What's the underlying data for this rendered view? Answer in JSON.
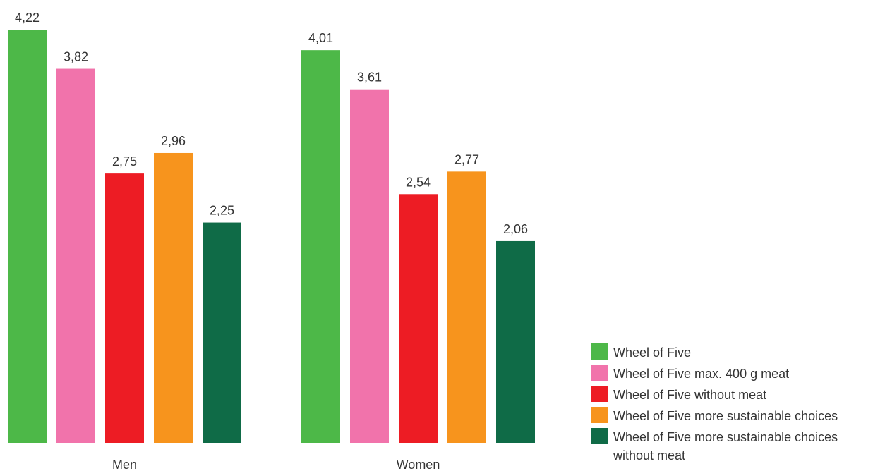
{
  "chart_data": {
    "type": "bar",
    "title": "",
    "xlabel": "",
    "ylabel": "",
    "ylim": [
      0,
      4.22
    ],
    "grid": false,
    "legend_position": "bottom-right",
    "categories": [
      "Men",
      "Women"
    ],
    "series": [
      {
        "name": "Wheel of Five",
        "color": "#4db848",
        "values": [
          4.22,
          4.01
        ],
        "labels": [
          "4,22",
          "4,01"
        ]
      },
      {
        "name": "Wheel of Five max. 400 g meat",
        "color": "#f173ab",
        "values": [
          3.82,
          3.61
        ],
        "labels": [
          "3,82",
          "3,61"
        ]
      },
      {
        "name": "Wheel of Five without meat",
        "color": "#ed1c24",
        "values": [
          2.75,
          2.54
        ],
        "labels": [
          "2,75",
          "2,54"
        ]
      },
      {
        "name": "Wheel of Five more sustainable choices",
        "color": "#f7941d",
        "values": [
          2.96,
          2.77
        ],
        "labels": [
          "2,96",
          "2,77"
        ]
      },
      {
        "name": "Wheel of Five more sustainable choices without meat",
        "color": "#0f6b47",
        "values": [
          2.25,
          2.06
        ],
        "labels": [
          "2,25",
          "2,06"
        ]
      }
    ]
  }
}
